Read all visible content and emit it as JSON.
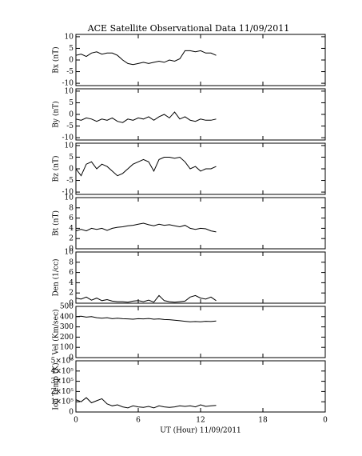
{
  "chart_data": [
    {
      "type": "line",
      "title": "ACE Satellite Observational Data   11/09/2011",
      "ylabel": "Bx (nT)",
      "color": "#000000",
      "x": [
        0,
        0.5,
        1,
        1.5,
        2,
        2.5,
        3,
        3.5,
        4,
        4.5,
        5,
        5.5,
        6,
        6.5,
        7,
        7.5,
        8,
        8.5,
        9,
        9.5,
        10,
        10.5,
        11,
        11.5,
        12,
        12.5,
        13,
        13.5
      ],
      "values": [
        2,
        2.5,
        1.5,
        3,
        3.5,
        2.5,
        3,
        3,
        2,
        0,
        -1.5,
        -2,
        -1.5,
        -1,
        -1.5,
        -1,
        -0.5,
        -1,
        0,
        -0.5,
        0.5,
        4,
        4,
        3.5,
        4,
        3,
        3,
        2
      ],
      "xlim": [
        0,
        24
      ],
      "ylim": [
        -11,
        11
      ],
      "yticks": [
        -10,
        -5,
        0,
        5,
        10
      ]
    },
    {
      "type": "line",
      "ylabel": "By (nT)",
      "color": "#000000",
      "x": [
        0,
        0.5,
        1,
        1.5,
        2,
        2.5,
        3,
        3.5,
        4,
        4.5,
        5,
        5.5,
        6,
        6.5,
        7,
        7.5,
        8,
        8.5,
        9,
        9.5,
        10,
        10.5,
        11,
        11.5,
        12,
        12.5,
        13,
        13.5
      ],
      "values": [
        -2,
        -2.5,
        -1.5,
        -2,
        -3,
        -2,
        -2.5,
        -1.5,
        -3,
        -3.5,
        -2,
        -2.5,
        -1.5,
        -2,
        -1,
        -2.5,
        -1,
        0,
        -1.5,
        1,
        -2,
        -1,
        -2.5,
        -3,
        -2,
        -2.5,
        -2.5,
        -2
      ],
      "xlim": [
        0,
        24
      ],
      "ylim": [
        -11,
        11
      ],
      "yticks": [
        -10,
        -5,
        0,
        5,
        10
      ]
    },
    {
      "type": "line",
      "ylabel": "Bz (nT)",
      "color": "#000000",
      "x": [
        0,
        0.5,
        1,
        1.5,
        2,
        2.5,
        3,
        3.5,
        4,
        4.5,
        5,
        5.5,
        6,
        6.5,
        7,
        7.5,
        8,
        8.5,
        9,
        9.5,
        10,
        10.5,
        11,
        11.5,
        12,
        12.5,
        13,
        13.5
      ],
      "values": [
        0,
        -3,
        2,
        3,
        0,
        2,
        1,
        -1,
        -3,
        -2,
        0,
        2,
        3,
        4,
        3,
        -1,
        4,
        5,
        5,
        4.5,
        5,
        3,
        0,
        1,
        -1,
        0,
        0,
        1
      ],
      "xlim": [
        0,
        24
      ],
      "ylim": [
        -11,
        11
      ],
      "yticks": [
        -10,
        -5,
        0,
        5,
        10
      ]
    },
    {
      "type": "line",
      "ylabel": "Bt (nT)",
      "color": "#000000",
      "x": [
        0,
        0.5,
        1,
        1.5,
        2,
        2.5,
        3,
        3.5,
        4,
        4.5,
        5,
        5.5,
        6,
        6.5,
        7,
        7.5,
        8,
        8.5,
        9,
        9.5,
        10,
        10.5,
        11,
        11.5,
        12,
        12.5,
        13,
        13.5
      ],
      "values": [
        3.5,
        3.8,
        3.5,
        4,
        3.8,
        4,
        3.6,
        4,
        4.2,
        4.3,
        4.5,
        4.6,
        4.8,
        5,
        4.7,
        4.5,
        4.8,
        4.6,
        4.7,
        4.5,
        4.3,
        4.6,
        4,
        3.8,
        4,
        3.9,
        3.5,
        3.3
      ],
      "xlim": [
        0,
        24
      ],
      "ylim": [
        0,
        10
      ],
      "yticks": [
        0,
        2,
        4,
        6,
        8,
        10
      ]
    },
    {
      "type": "line",
      "ylabel": "Den (1/cc)",
      "color": "#000000",
      "x": [
        0,
        0.5,
        1,
        1.5,
        2,
        2.5,
        3,
        3.5,
        4,
        4.5,
        5,
        5.5,
        6,
        6.5,
        7,
        7.5,
        8,
        8.5,
        9,
        9.5,
        10,
        10.5,
        11,
        11.5,
        12,
        12.5,
        13,
        13.5
      ],
      "values": [
        1,
        0.8,
        1.2,
        0.6,
        1,
        0.5,
        0.7,
        0.4,
        0.3,
        0.3,
        0.2,
        0.4,
        0.5,
        0.3,
        0.6,
        0.2,
        1.5,
        0.5,
        0.3,
        0.2,
        0.3,
        0.4,
        1.2,
        1.5,
        1,
        0.8,
        1.2,
        0.5
      ],
      "xlim": [
        0,
        24
      ],
      "ylim": [
        0,
        10
      ],
      "yticks": [
        0,
        2,
        4,
        6,
        8,
        10
      ]
    },
    {
      "type": "line",
      "ylabel": "Vel (Km/sec)",
      "color": "#000000",
      "x": [
        0,
        0.5,
        1,
        1.5,
        2,
        2.5,
        3,
        3.5,
        4,
        4.5,
        5,
        5.5,
        6,
        6.5,
        7,
        7.5,
        8,
        8.5,
        9,
        9.5,
        10,
        10.5,
        11,
        11.5,
        12,
        12.5,
        13,
        13.5
      ],
      "values": [
        400,
        405,
        395,
        400,
        390,
        385,
        390,
        380,
        385,
        380,
        378,
        375,
        380,
        378,
        382,
        375,
        378,
        372,
        370,
        365,
        360,
        355,
        350,
        352,
        350,
        355,
        352,
        358
      ],
      "xlim": [
        0,
        24
      ],
      "ylim": [
        0,
        500
      ],
      "yticks": [
        0,
        100,
        200,
        300,
        400,
        500
      ]
    },
    {
      "type": "line",
      "ylabel": "Ion Temp (K)",
      "xlabel": "UT (Hour)  11/09/2011",
      "color": "#000000",
      "x": [
        0,
        0.5,
        1,
        1.5,
        2,
        2.5,
        3,
        3.5,
        4,
        4.5,
        5,
        5.5,
        6,
        6.5,
        7,
        7.5,
        8,
        8.5,
        9,
        9.5,
        10,
        10.5,
        11,
        11.5,
        12,
        12.5,
        13,
        13.5
      ],
      "values": [
        120000,
        100000,
        140000,
        90000,
        110000,
        130000,
        80000,
        60000,
        70000,
        50000,
        40000,
        60000,
        50000,
        45000,
        55000,
        40000,
        60000,
        50000,
        45000,
        50000,
        60000,
        55000,
        60000,
        50000,
        70000,
        55000,
        60000,
        65000
      ],
      "xlim": [
        0,
        24
      ],
      "xticks": [
        0,
        6,
        12,
        18,
        {
          "value": 24,
          "label": "0"
        }
      ],
      "ylim": [
        0,
        500000
      ],
      "yticks": [
        0,
        {
          "value": 100000,
          "label": "1×10⁵"
        },
        {
          "value": 200000,
          "label": "2×10⁵"
        },
        {
          "value": 300000,
          "label": "3×10⁵"
        },
        {
          "value": 400000,
          "label": "4×10⁵"
        },
        {
          "value": 500000,
          "label": "5×10⁵"
        }
      ]
    }
  ]
}
